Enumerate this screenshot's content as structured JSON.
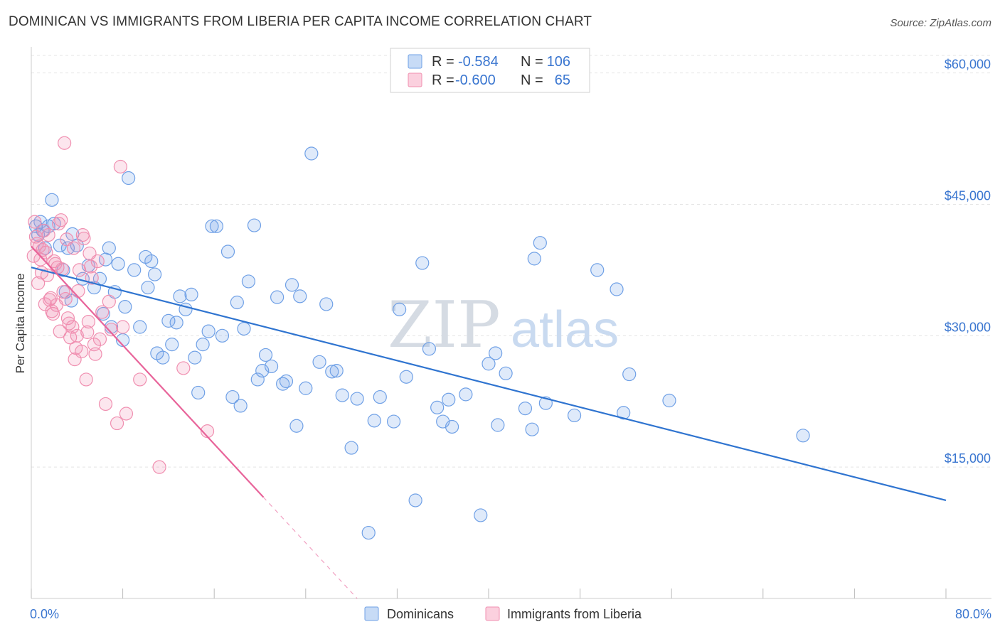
{
  "title": "DOMINICAN VS IMMIGRANTS FROM LIBERIA PER CAPITA INCOME CORRELATION CHART",
  "source": "Source: ZipAtlas.com",
  "watermark": {
    "part1": "ZIP",
    "part2": "atlas"
  },
  "legend_top": {
    "rows": [
      {
        "r_label": "R =",
        "r_value": "-0.584",
        "n_label": "N =",
        "n_value": "106",
        "color": "#6fa0e6"
      },
      {
        "r_label": "R =",
        "r_value": "-0.600",
        "n_label": "N =",
        "n_value": "65",
        "color": "#f08fb0"
      }
    ]
  },
  "legend_bottom": [
    {
      "label": "Dominicans",
      "color": "#6fa0e6"
    },
    {
      "label": "Immigrants from Liberia",
      "color": "#f08fb0"
    }
  ],
  "chart_data": {
    "type": "scatter",
    "xlabel": "",
    "ylabel": "Per Capita Income",
    "xlim": [
      0,
      80
    ],
    "ylim": [
      0,
      62000
    ],
    "x_tick_labels": {
      "min": "0.0%",
      "max": "80.0%"
    },
    "y_ticks": [
      {
        "value": 15000,
        "label": "$15,000"
      },
      {
        "value": 30000,
        "label": "$30,000"
      },
      {
        "value": 45000,
        "label": "$45,000"
      },
      {
        "value": 60000,
        "label": "$60,000"
      }
    ],
    "series": [
      {
        "name": "Dominicans",
        "color": "#6fa0e6",
        "trend": {
          "x1": 0,
          "y1": 37800,
          "x2": 80,
          "y2": 11200,
          "dashed_from": null
        },
        "points": [
          [
            0.4,
            42500
          ],
          [
            0.6,
            41500
          ],
          [
            0.8,
            43000
          ],
          [
            1.0,
            42000
          ],
          [
            1.2,
            40000
          ],
          [
            1.5,
            42500
          ],
          [
            1.8,
            45500
          ],
          [
            2.0,
            42800
          ],
          [
            2.5,
            40300
          ],
          [
            2.8,
            37500
          ],
          [
            3.0,
            35000
          ],
          [
            3.2,
            40000
          ],
          [
            3.5,
            34000
          ],
          [
            4.0,
            40300
          ],
          [
            4.5,
            36500
          ],
          [
            5.0,
            38000
          ],
          [
            5.5,
            35500
          ],
          [
            6.0,
            36500
          ],
          [
            6.3,
            32500
          ],
          [
            6.8,
            40000
          ],
          [
            7.0,
            31000
          ],
          [
            7.3,
            35000
          ],
          [
            7.6,
            38200
          ],
          [
            8.0,
            29500
          ],
          [
            8.2,
            33300
          ],
          [
            8.5,
            48000
          ],
          [
            9.0,
            37500
          ],
          [
            9.5,
            31000
          ],
          [
            10.0,
            39000
          ],
          [
            10.2,
            35500
          ],
          [
            10.5,
            38500
          ],
          [
            10.8,
            37000
          ],
          [
            11.0,
            28000
          ],
          [
            11.5,
            27500
          ],
          [
            12.0,
            31700
          ],
          [
            12.3,
            29000
          ],
          [
            12.7,
            31500
          ],
          [
            13.0,
            34500
          ],
          [
            13.5,
            33000
          ],
          [
            14.0,
            34700
          ],
          [
            14.3,
            27500
          ],
          [
            14.6,
            23500
          ],
          [
            15.0,
            29000
          ],
          [
            15.5,
            30500
          ],
          [
            15.8,
            42500
          ],
          [
            16.2,
            42500
          ],
          [
            16.7,
            30000
          ],
          [
            17.2,
            39600
          ],
          [
            17.6,
            23000
          ],
          [
            18.0,
            33800
          ],
          [
            18.3,
            22000
          ],
          [
            18.6,
            30800
          ],
          [
            19.0,
            36200
          ],
          [
            19.5,
            42600
          ],
          [
            19.8,
            25000
          ],
          [
            20.2,
            26000
          ],
          [
            20.5,
            27800
          ],
          [
            21.0,
            26500
          ],
          [
            21.5,
            34400
          ],
          [
            22.0,
            24500
          ],
          [
            22.3,
            24800
          ],
          [
            22.8,
            35800
          ],
          [
            23.2,
            19700
          ],
          [
            23.5,
            34500
          ],
          [
            24.0,
            24000
          ],
          [
            24.5,
            50800
          ],
          [
            25.2,
            27000
          ],
          [
            25.8,
            33600
          ],
          [
            26.3,
            25900
          ],
          [
            26.7,
            26000
          ],
          [
            27.2,
            23200
          ],
          [
            28.0,
            17200
          ],
          [
            28.5,
            22800
          ],
          [
            29.5,
            7500
          ],
          [
            30.0,
            20300
          ],
          [
            30.5,
            23000
          ],
          [
            31.7,
            20200
          ],
          [
            32.2,
            33000
          ],
          [
            32.8,
            25300
          ],
          [
            33.6,
            11200
          ],
          [
            34.2,
            38300
          ],
          [
            34.8,
            28500
          ],
          [
            35.5,
            21800
          ],
          [
            36.0,
            20200
          ],
          [
            36.5,
            22700
          ],
          [
            36.8,
            19600
          ],
          [
            38.0,
            23300
          ],
          [
            39.3,
            9500
          ],
          [
            40.0,
            26800
          ],
          [
            40.6,
            28000
          ],
          [
            40.8,
            19800
          ],
          [
            41.5,
            25700
          ],
          [
            43.2,
            21700
          ],
          [
            43.8,
            19300
          ],
          [
            44.0,
            38800
          ],
          [
            44.5,
            40600
          ],
          [
            45.0,
            22300
          ],
          [
            47.5,
            20900
          ],
          [
            49.5,
            37500
          ],
          [
            51.2,
            35300
          ],
          [
            51.8,
            21200
          ],
          [
            52.3,
            25600
          ],
          [
            55.8,
            22600
          ],
          [
            67.5,
            18600
          ],
          [
            3.6,
            41600
          ],
          [
            6.5,
            38700
          ]
        ]
      },
      {
        "name": "Immigrants from Liberia",
        "color": "#f08fb0",
        "trend": {
          "x1": 0,
          "y1": 40200,
          "x2": 28.5,
          "y2": 0,
          "dashed_from": 20.3
        },
        "points": [
          [
            0.3,
            43000
          ],
          [
            0.5,
            40500
          ],
          [
            0.6,
            36000
          ],
          [
            0.8,
            38700
          ],
          [
            1.0,
            39800
          ],
          [
            1.1,
            42000
          ],
          [
            1.3,
            39500
          ],
          [
            1.5,
            41500
          ],
          [
            1.7,
            34300
          ],
          [
            1.9,
            32500
          ],
          [
            2.0,
            38500
          ],
          [
            2.2,
            33500
          ],
          [
            2.3,
            37800
          ],
          [
            2.5,
            30500
          ],
          [
            2.6,
            43200
          ],
          [
            2.8,
            35000
          ],
          [
            3.0,
            34200
          ],
          [
            3.2,
            32000
          ],
          [
            3.4,
            29800
          ],
          [
            3.6,
            31000
          ],
          [
            3.8,
            27300
          ],
          [
            4.0,
            30000
          ],
          [
            4.2,
            37500
          ],
          [
            4.4,
            28200
          ],
          [
            4.6,
            41100
          ],
          [
            4.8,
            25000
          ],
          [
            5.0,
            31600
          ],
          [
            5.3,
            36600
          ],
          [
            5.5,
            29000
          ],
          [
            5.8,
            38500
          ],
          [
            6.2,
            32700
          ],
          [
            6.5,
            22200
          ],
          [
            7.0,
            30700
          ],
          [
            7.5,
            20000
          ],
          [
            7.8,
            49300
          ],
          [
            8.0,
            31000
          ],
          [
            8.3,
            21100
          ],
          [
            9.5,
            25000
          ],
          [
            11.2,
            15000
          ],
          [
            13.3,
            26300
          ],
          [
            15.4,
            19100
          ],
          [
            2.9,
            52000
          ],
          [
            3.1,
            41000
          ],
          [
            1.2,
            33600
          ],
          [
            0.9,
            37200
          ],
          [
            4.5,
            41500
          ],
          [
            5.1,
            39400
          ],
          [
            2.4,
            42800
          ],
          [
            1.6,
            34100
          ],
          [
            0.7,
            40200
          ],
          [
            3.7,
            40000
          ],
          [
            2.1,
            38200
          ],
          [
            4.9,
            30400
          ],
          [
            1.4,
            36900
          ],
          [
            6.0,
            29600
          ],
          [
            0.4,
            41300
          ],
          [
            3.3,
            31400
          ],
          [
            2.7,
            37600
          ],
          [
            1.8,
            32800
          ],
          [
            4.1,
            35100
          ],
          [
            5.6,
            27900
          ],
          [
            0.2,
            39100
          ],
          [
            6.8,
            33900
          ],
          [
            3.9,
            28600
          ],
          [
            5.2,
            37900
          ]
        ]
      }
    ]
  }
}
